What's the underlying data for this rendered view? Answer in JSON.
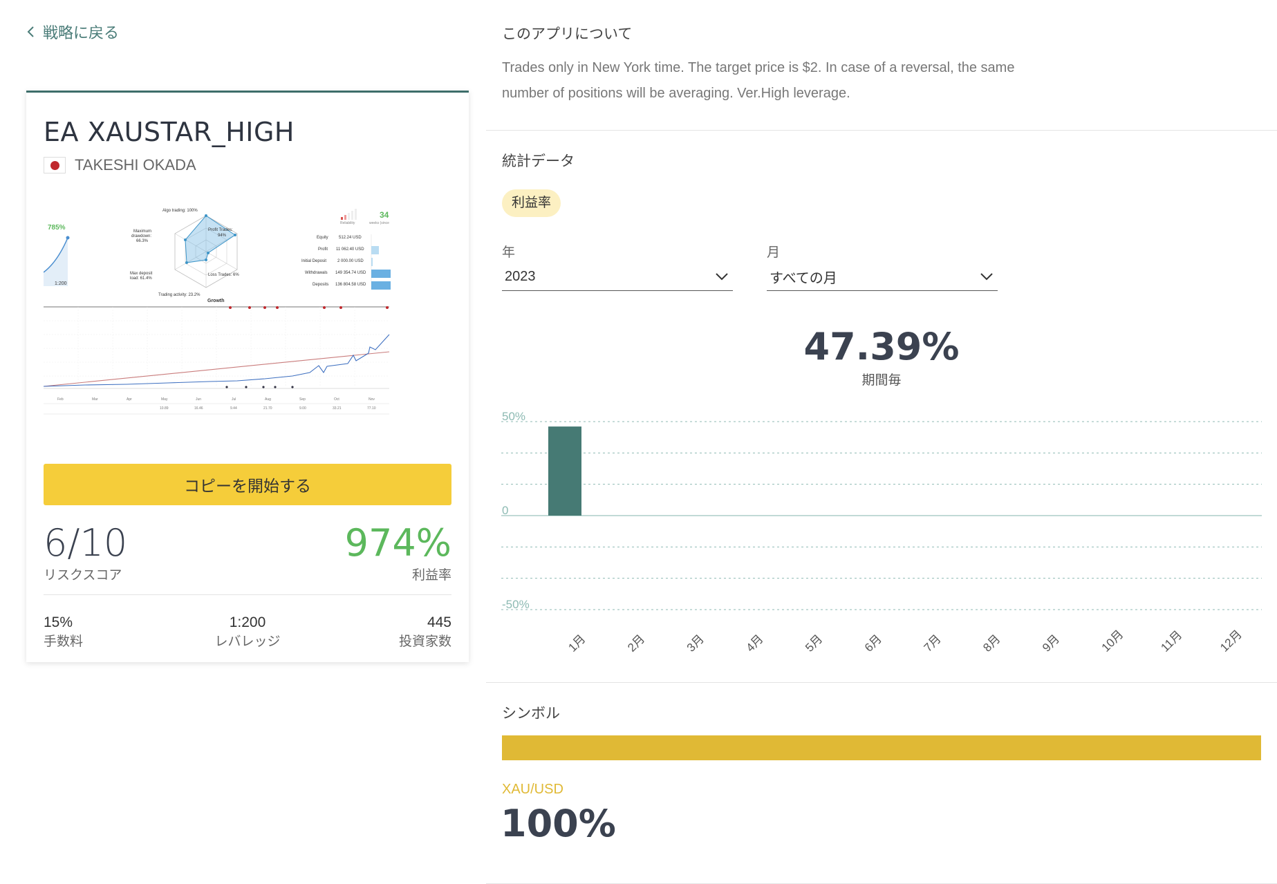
{
  "nav": {
    "back_label": "戦略に戻る"
  },
  "strategy": {
    "title": "EA XAUSTAR_HIGH",
    "author": "TAKESHI OKADA",
    "copy_button": "コピーを開始する",
    "risk_score": "6/10",
    "risk_label": "リスクスコア",
    "profit": "974%",
    "profit_label": "利益率",
    "fee": "15%",
    "fee_label": "手数料",
    "leverage": "1:200",
    "leverage_label": "レバレッジ",
    "investors": "445",
    "investors_label": "投資家数"
  },
  "widget": {
    "growth_pct": "785%",
    "leverage": "1:200",
    "radar_labels": [
      "Algo trading: 100%",
      "Profit Trades:",
      "94%",
      "Loss Trades: 6%",
      "Trading activity: 23.2%",
      "Max deposit",
      "load: 61.4%",
      "Maximum",
      "drawdown:",
      "66.3%"
    ],
    "weeks": "34",
    "weeks_label": "weeks (since",
    "reliability_label": "Reliability",
    "account_rows": [
      {
        "label": "Equity",
        "value": "512.24 USD"
      },
      {
        "label": "Profit",
        "value": "11 062.40 USD"
      },
      {
        "label": "Initial Deposit",
        "value": "2 000.00 USD"
      },
      {
        "label": "Withdrawals",
        "value": "149 354.74 USD"
      },
      {
        "label": "Deposits",
        "value": "136 804.58 USD"
      }
    ],
    "growth_title": "Growth",
    "months": [
      "Feb",
      "Mar",
      "Apr",
      "May",
      "Jun",
      "Jul",
      "Aug",
      "Sep",
      "Oct",
      "Nov"
    ],
    "bottom_values": [
      "10.89",
      "16.46",
      "9.44",
      "21.70",
      "9.00",
      "33.21",
      "77.10"
    ]
  },
  "about": {
    "heading": "このアプリについて",
    "text": "Trades only in New York time. The target price is $2. In case of a reversal, the same number of positions will be averaging. Ver.High leverage."
  },
  "stats": {
    "heading": "統計データ",
    "active_tab": "利益率",
    "year_label": "年",
    "year_value": "2023",
    "month_label": "月",
    "month_value": "すべての月",
    "period_value": "47.39%",
    "period_label": "期間毎"
  },
  "chart_data": {
    "type": "bar",
    "categories": [
      "1月",
      "2月",
      "3月",
      "4月",
      "5月",
      "6月",
      "7月",
      "8月",
      "9月",
      "10月",
      "11月",
      "12月"
    ],
    "values": [
      47.39,
      0,
      0,
      0,
      0,
      0,
      0,
      0,
      0,
      0,
      0,
      0
    ],
    "ylim": [
      -50,
      50
    ],
    "ytick_labels": [
      "50%",
      "0",
      "-50%"
    ],
    "bar_color": "#467a74",
    "grid": true
  },
  "symbols": {
    "heading": "シンボル",
    "items": [
      {
        "name": "XAU/USD",
        "share": "100%",
        "fraction": 1.0,
        "color": "#e0b935"
      }
    ]
  }
}
